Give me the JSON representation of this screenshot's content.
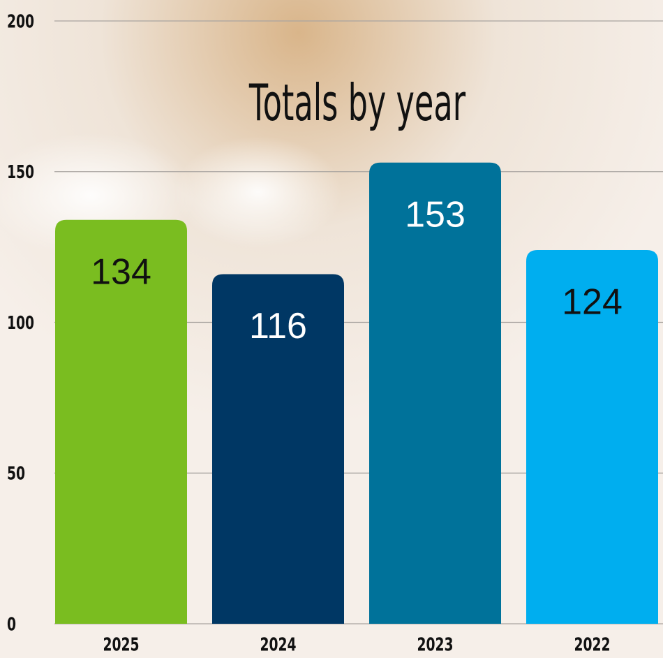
{
  "chart_data": {
    "type": "bar",
    "title": "Totals by year",
    "categories": [
      "2025",
      "2024",
      "2023",
      "2022"
    ],
    "values": [
      134,
      116,
      153,
      124
    ],
    "colors": [
      "#7abd20",
      "#003764",
      "#00729a",
      "#00aeef"
    ],
    "ylim": [
      0,
      200
    ],
    "yticks": [
      0,
      50,
      100,
      150,
      200
    ],
    "grid": true
  }
}
